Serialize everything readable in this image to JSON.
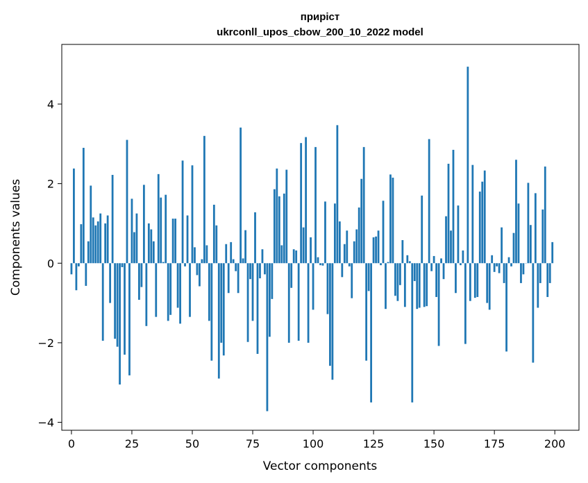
{
  "chart_data": {
    "type": "bar",
    "title_line1": "приріст",
    "title_line2": "ukrconll_upos_cbow_200_10_2022 model",
    "xlabel": "Vector components",
    "ylabel": "Components values",
    "xlim": [
      -4,
      210
    ],
    "ylim": [
      -4.2,
      5.5
    ],
    "xticks": [
      0,
      25,
      50,
      75,
      100,
      125,
      150,
      175,
      200
    ],
    "xtick_labels": [
      "0",
      "25",
      "50",
      "75",
      "100",
      "125",
      "150",
      "175",
      "200"
    ],
    "yticks": [
      -4,
      -2,
      0,
      2,
      4
    ],
    "ytick_labels": [
      "−4",
      "−2",
      "0",
      "2",
      "4"
    ],
    "bar_color": "#1f77b4",
    "grid": false,
    "legend": "none",
    "values": [
      -0.28,
      2.38,
      -0.68,
      -0.08,
      0.98,
      2.9,
      -0.57,
      0.55,
      1.95,
      1.15,
      0.95,
      1.05,
      1.25,
      -1.95,
      1.0,
      1.2,
      -1.0,
      2.22,
      -1.9,
      -2.1,
      -3.05,
      -0.1,
      -2.3,
      3.1,
      -2.82,
      1.62,
      0.78,
      1.25,
      -0.92,
      -0.6,
      1.97,
      -1.58,
      1.0,
      0.85,
      0.55,
      -1.35,
      2.24,
      1.65,
      0.03,
      1.72,
      -1.45,
      -1.3,
      1.12,
      1.12,
      -1.12,
      -1.52,
      2.58,
      -0.08,
      1.2,
      -1.35,
      2.46,
      0.4,
      -0.3,
      -0.58,
      0.1,
      3.2,
      0.45,
      -1.45,
      -2.45,
      1.47,
      0.95,
      -2.9,
      -2.0,
      -2.32,
      0.48,
      -0.75,
      0.53,
      0.1,
      -0.2,
      -0.75,
      3.41,
      0.12,
      0.83,
      -1.98,
      -0.4,
      -1.45,
      1.28,
      -2.28,
      -0.38,
      0.35,
      -0.28,
      -3.72,
      -1.85,
      -0.9,
      1.86,
      2.38,
      1.68,
      0.45,
      1.75,
      2.35,
      -2.0,
      -0.62,
      0.35,
      0.32,
      -1.95,
      3.02,
      0.9,
      3.17,
      -2.0,
      0.65,
      -1.17,
      2.92,
      0.15,
      -0.05,
      -0.06,
      1.55,
      -1.28,
      -2.58,
      -2.93,
      1.5,
      3.47,
      1.05,
      -0.35,
      0.48,
      0.82,
      -0.08,
      -0.88,
      0.55,
      0.85,
      1.4,
      2.12,
      2.92,
      -2.45,
      -0.7,
      -3.5,
      0.65,
      0.67,
      0.82,
      -0.05,
      1.57,
      -1.15,
      0.03,
      2.23,
      2.15,
      -0.82,
      -0.95,
      -0.55,
      0.58,
      -1.1,
      0.2,
      0.05,
      -3.5,
      -0.45,
      -1.15,
      -1.12,
      1.7,
      -1.1,
      -1.08,
      3.12,
      -0.2,
      0.18,
      -0.85,
      -2.08,
      0.12,
      -0.4,
      1.18,
      2.5,
      0.82,
      2.85,
      -0.75,
      1.45,
      -0.05,
      0.32,
      -2.03,
      4.94,
      -0.95,
      2.47,
      -0.87,
      -0.85,
      1.8,
      2.05,
      2.33,
      -1.0,
      -1.17,
      0.2,
      -0.22,
      -0.08,
      -0.25,
      0.9,
      -0.5,
      -2.22,
      0.15,
      -0.08,
      0.76,
      2.6,
      1.5,
      -0.5,
      -0.28,
      0.0,
      2.02,
      0.96,
      -2.5,
      1.76,
      -1.12,
      -0.5,
      1.35,
      2.43,
      -0.85,
      -0.5,
      0.53
    ]
  }
}
